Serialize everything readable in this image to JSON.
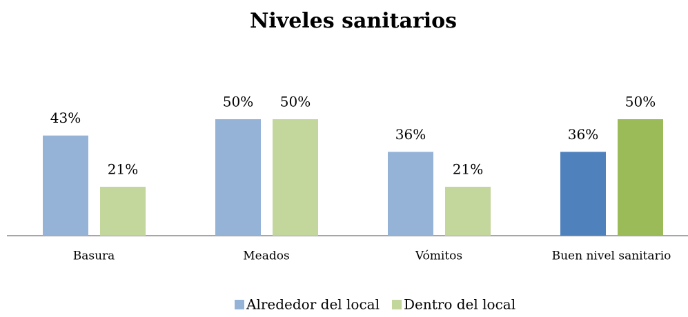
{
  "chart_data": {
    "type": "bar",
    "title": "Niveles sanitarios",
    "categories": [
      "Basura",
      "Meados",
      "Vómitos",
      "Buen nivel sanitario"
    ],
    "series": [
      {
        "name": "Alrededor del local",
        "color": "#95b3d7",
        "colors": [
          "#95b3d7",
          "#95b3d7",
          "#95b3d7",
          "#4f81bd"
        ],
        "values": [
          43,
          50,
          36,
          36
        ],
        "value_labels": [
          "43%",
          "50%",
          "36%",
          "36%"
        ]
      },
      {
        "name": "Dentro del local",
        "color": "#c3d69b",
        "colors": [
          "#c3d69b",
          "#c3d69b",
          "#c3d69b",
          "#9bbb59"
        ],
        "values": [
          21,
          50,
          21,
          50
        ],
        "value_labels": [
          "21%",
          "50%",
          "21%",
          "50%"
        ]
      }
    ],
    "legend": "bottom"
  }
}
